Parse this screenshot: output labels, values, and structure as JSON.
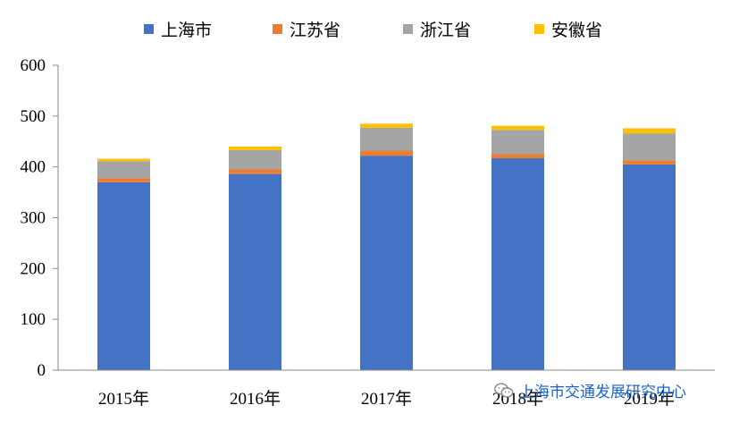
{
  "colors": {
    "上海市": "#4472c4",
    "江苏省": "#ed7d31",
    "浙江省": "#a5a5a5",
    "安徽省": "#ffc000",
    "axis": "#888888"
  },
  "chart_data": {
    "type": "bar",
    "stacked": true,
    "title": "",
    "xlabel": "",
    "ylabel": "",
    "categories": [
      "2015年",
      "2016年",
      "2017年",
      "2018年",
      "2019年"
    ],
    "series": [
      {
        "name": "上海市",
        "values": [
          370,
          386,
          422,
          417,
          405
        ]
      },
      {
        "name": "江苏省",
        "values": [
          8,
          9,
          10,
          8,
          8
        ]
      },
      {
        "name": "浙江省",
        "values": [
          33,
          38,
          45,
          48,
          53
        ]
      },
      {
        "name": "安徽省",
        "values": [
          5,
          7,
          8,
          8,
          10
        ]
      }
    ],
    "ylim": [
      0,
      600
    ],
    "yticks": [
      0,
      100,
      200,
      300,
      400,
      500,
      600
    ],
    "grid": false,
    "legend_position": "top"
  },
  "watermark": {
    "text": "上海市交通发展研究中心",
    "icon": "wechat-icon"
  }
}
